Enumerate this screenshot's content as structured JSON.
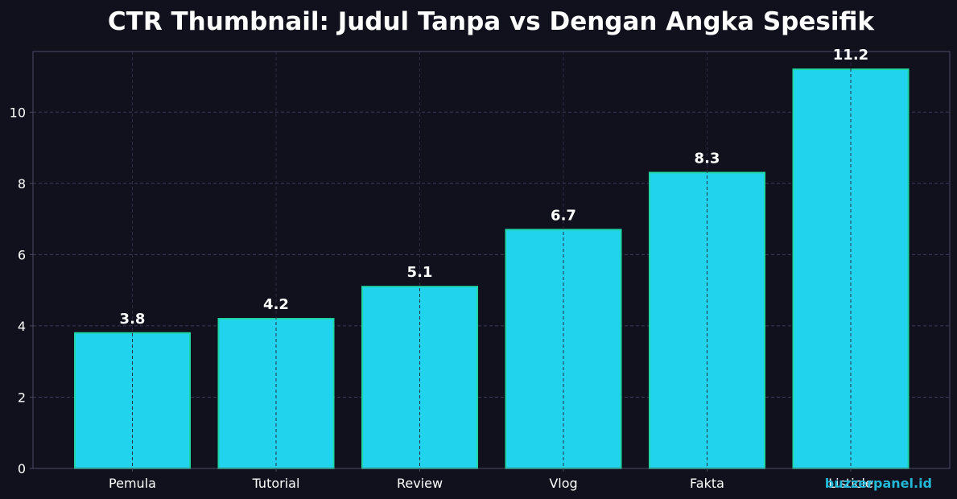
{
  "chart_data": {
    "type": "bar",
    "title": "CTR Thumbnail: Judul Tanpa vs Dengan Angka Spesifik",
    "categories": [
      "Pemula",
      "Tutorial",
      "Review",
      "Vlog",
      "Fakta",
      "Listicle"
    ],
    "values": [
      3.8,
      4.2,
      5.1,
      6.7,
      8.3,
      11.2
    ],
    "data_labels": [
      "3.8",
      "4.2",
      "5.1",
      "6.7",
      "8.3",
      "11.2"
    ],
    "y_ticks": [
      0,
      2,
      4,
      6,
      8,
      10
    ],
    "ylim": [
      0,
      11.7
    ],
    "xlabel": "",
    "ylabel": "",
    "grid": true,
    "colors": {
      "background": "#11111d",
      "bar_fill": "#22d3ee",
      "bar_edge": "#1ed6a6",
      "grid": "#3b3b5a",
      "axis": "#4a4a66",
      "text": "#ffffff",
      "watermark": "#22b8d6"
    }
  },
  "watermark": "buzzerpanel.id"
}
